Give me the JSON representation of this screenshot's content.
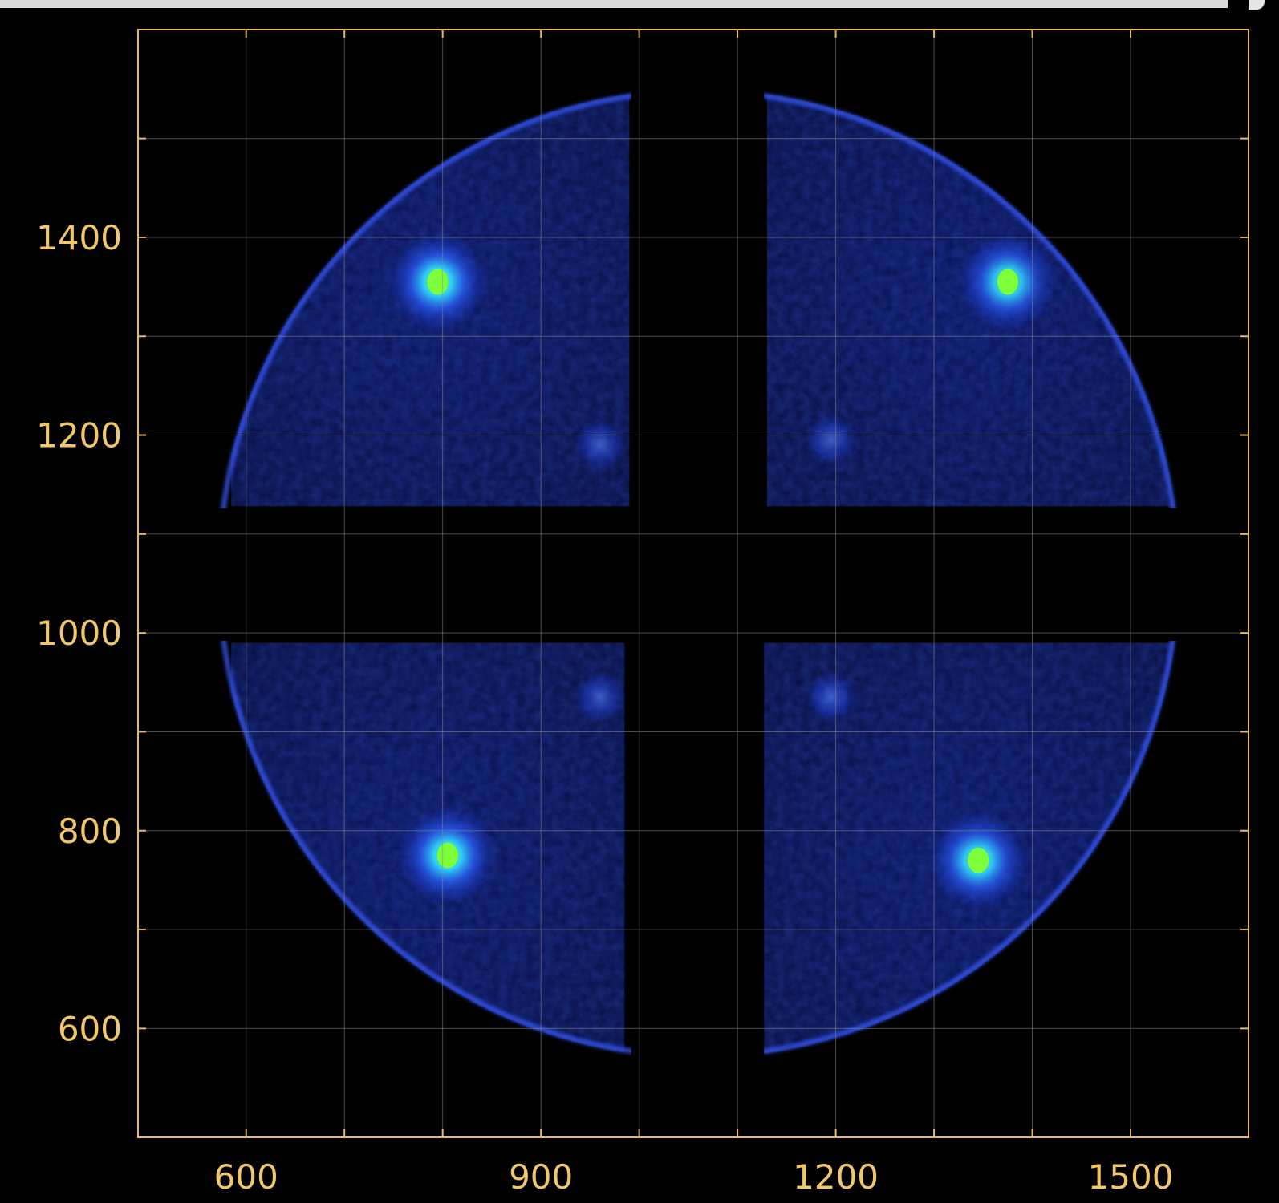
{
  "chart_data": {
    "type": "heatmap",
    "title": "",
    "xlabel": "",
    "ylabel": "",
    "xlim": [
      490,
      1620
    ],
    "ylim": [
      490,
      1610
    ],
    "x_ticks": [
      600,
      900,
      1200,
      1500
    ],
    "y_ticks": [
      600,
      800,
      1000,
      1200,
      1400
    ],
    "x_tick_labels": [
      "600",
      "900",
      "1200",
      "1500"
    ],
    "y_tick_labels": [
      "600",
      "800",
      "1000",
      "1200",
      "1400"
    ],
    "x_grid": [
      600,
      700,
      800,
      900,
      1000,
      1100,
      1200,
      1300,
      1400,
      1500
    ],
    "y_grid": [
      600,
      700,
      800,
      900,
      1000,
      1100,
      1200,
      1300,
      1400,
      1500
    ],
    "grid": true,
    "colormap": "intensity: black → blue → green",
    "colors": {
      "background": "#000000",
      "axes": "#e9b860",
      "tick_labels": "#f2c76a",
      "low": "#1a2fd6",
      "high": "#7cff3a",
      "grid": "#8a8a8a"
    },
    "detector_disc": {
      "center": [
        1060,
        1060
      ],
      "radius": 490
    },
    "quadrants": [
      {
        "name": "top-left",
        "x": [
          585,
          990
        ],
        "y": [
          1128,
          1548
        ]
      },
      {
        "name": "top-right",
        "x": [
          1130,
          1550
        ],
        "y": [
          1128,
          1548
        ]
      },
      {
        "name": "bottom-left",
        "x": [
          585,
          985
        ],
        "y": [
          545,
          990
        ]
      },
      {
        "name": "bottom-right",
        "x": [
          1127,
          1550
        ],
        "y": [
          545,
          990
        ]
      }
    ],
    "hot_spots": [
      {
        "x": 795,
        "y": 1355,
        "intensity": 1.0
      },
      {
        "x": 1375,
        "y": 1355,
        "intensity": 0.85
      },
      {
        "x": 960,
        "y": 1190,
        "intensity": 0.35
      },
      {
        "x": 1195,
        "y": 1195,
        "intensity": 0.35
      },
      {
        "x": 805,
        "y": 775,
        "intensity": 1.0
      },
      {
        "x": 1345,
        "y": 770,
        "intensity": 0.9
      },
      {
        "x": 960,
        "y": 935,
        "intensity": 0.35
      },
      {
        "x": 1195,
        "y": 935,
        "intensity": 0.4
      }
    ]
  }
}
